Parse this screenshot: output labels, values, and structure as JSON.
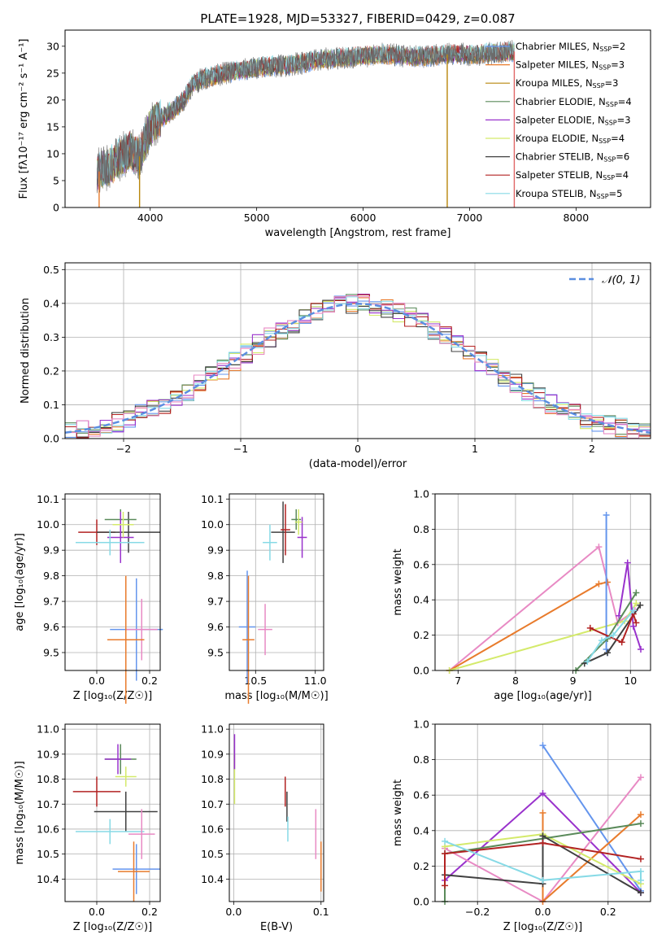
{
  "chart_data": [
    {
      "id": "spectrum",
      "type": "line",
      "title": "PLATE=1928, MJD=53327, FIBERID=0429, z=0.087",
      "xlabel": "wavelength [Angstrom, rest frame]",
      "ylabel": "Flux [fλ10⁻¹⁷ erg cm⁻² s⁻¹ A⁻¹]",
      "xlim": [
        3200,
        8700
      ],
      "ylim": [
        0,
        33
      ],
      "xticks": [
        4000,
        5000,
        6000,
        7000,
        8000
      ],
      "yticks": [
        0,
        5,
        10,
        15,
        20,
        25,
        30
      ],
      "legend_position": "top-right",
      "continuum": {
        "x": [
          3500,
          3600,
          3700,
          3800,
          3900,
          4000,
          4100,
          4200,
          4300,
          4400,
          4500,
          4700,
          5000,
          5300,
          5600,
          5900,
          6200,
          6500,
          6800,
          7100,
          7400
        ],
        "y": [
          6.5,
          7.5,
          9,
          10.5,
          9.5,
          15,
          16.5,
          18,
          19.5,
          23,
          24,
          25,
          26,
          26.5,
          27.5,
          28,
          28.5,
          28,
          28.5,
          28.5,
          29
        ]
      },
      "series": [
        {
          "name": "Chabrier MILES, N",
          "sub": "SSP",
          "count": "=2",
          "color": "#6495ed"
        },
        {
          "name": "Salpeter MILES, N",
          "sub": "SSP",
          "count": "=3",
          "color": "#e87b2c"
        },
        {
          "name": "Kroupa MILES, N",
          "sub": "SSP",
          "count": "=3",
          "color": "#b8860b"
        },
        {
          "name": "Chabrier ELODIE, N",
          "sub": "SSP",
          "count": "=4",
          "color": "#5a8a5a"
        },
        {
          "name": "Salpeter ELODIE, N",
          "sub": "SSP",
          "count": "=3",
          "color": "#9932cc"
        },
        {
          "name": "Kroupa ELODIE, N",
          "sub": "SSP",
          "count": "=4",
          "color": "#d4ea6b"
        },
        {
          "name": "Chabrier STELIB, N",
          "sub": "SSP",
          "count": "=6",
          "color": "#404040"
        },
        {
          "name": "Salpeter STELIB, N",
          "sub": "SSP",
          "count": "=4",
          "color": "#b22222"
        },
        {
          "name": "Kroupa STELIB, N",
          "sub": "SSP",
          "count": "=5",
          "color": "#87dae6"
        }
      ],
      "dips": [
        {
          "x": 3520,
          "color": "#e87b2c"
        },
        {
          "x": 3900,
          "color": "#b8860b"
        },
        {
          "x": 6790,
          "color": "#b8860b"
        },
        {
          "x": 7420,
          "color": "#e06666"
        }
      ]
    },
    {
      "id": "residuals",
      "type": "histogram",
      "xlabel": "(data-model)/error",
      "ylabel": "Normed distribution",
      "xlim": [
        -2.5,
        2.5
      ],
      "ylim": [
        0,
        0.52
      ],
      "xticks": [
        -2,
        -1,
        0,
        1,
        2
      ],
      "yticks": [
        0.0,
        0.1,
        0.2,
        0.3,
        0.4,
        0.5
      ],
      "legend_label": "𝒩(0, 1)",
      "legend_position": "top-right",
      "bin_width": 0.1,
      "colors": [
        "#6495ed",
        "#e87b2c",
        "#d4ea6b",
        "#5a8a5a",
        "#9932cc",
        "#404040",
        "#b22222",
        "#87dae6",
        "#e88ac4"
      ],
      "normal": {
        "mean": 0,
        "sigma": 1,
        "color": "#5b8ee0"
      }
    },
    {
      "id": "age-vs-z",
      "type": "errorbar",
      "xlabel": "Z [log₁₀(Z/Z☉)]",
      "ylabel": "age  [log₁₀(age/yr)]",
      "xlim": [
        -0.12,
        0.24
      ],
      "ylim": [
        9.43,
        10.12
      ],
      "xticks": [
        0.0,
        0.2
      ],
      "yticks": [
        9.5,
        9.6,
        9.7,
        9.8,
        9.9,
        10.0,
        10.1
      ],
      "points": [
        {
          "x": 0.0,
          "y": 9.97,
          "xerr": 0.07,
          "yerr": 0.05,
          "color": "#b22222"
        },
        {
          "x": 0.12,
          "y": 9.97,
          "xerr": 0.12,
          "yerr": 0.08,
          "color": "#404040"
        },
        {
          "x": 0.09,
          "y": 10.02,
          "xerr": 0.06,
          "yerr": 0.04,
          "color": "#5a8a5a"
        },
        {
          "x": 0.09,
          "y": 9.95,
          "xerr": 0.05,
          "yerr": 0.1,
          "color": "#9932cc"
        },
        {
          "x": 0.05,
          "y": 9.93,
          "xerr": 0.13,
          "yerr": 0.05,
          "color": "#87dae6"
        },
        {
          "x": 0.1,
          "y": 10.0,
          "xerr": 0.04,
          "yerr": 0.05,
          "color": "#d4ea6b"
        },
        {
          "x": 0.15,
          "y": 9.59,
          "xerr": 0.1,
          "yerr": 0.2,
          "color": "#6495ed"
        },
        {
          "x": 0.17,
          "y": 9.59,
          "xerr": 0.06,
          "yerr": 0.12,
          "color": "#e88ac4"
        },
        {
          "x": 0.11,
          "y": 9.55,
          "xerr": 0.07,
          "yerr": 0.25,
          "color": "#e87b2c"
        }
      ]
    },
    {
      "id": "age-vs-mass",
      "type": "errorbar",
      "xlabel": "mass [log₁₀(M/M☉)]",
      "ylabel": "",
      "xlim": [
        10.28,
        11.07
      ],
      "ylim": [
        9.43,
        10.12
      ],
      "xticks": [
        10.5,
        11.0
      ],
      "yticks": [
        9.5,
        9.6,
        9.7,
        9.8,
        9.9,
        10.0,
        10.1
      ],
      "points": [
        {
          "x": 10.73,
          "y": 9.97,
          "xerr": 0.1,
          "yerr": 0.12,
          "color": "#404040"
        },
        {
          "x": 10.84,
          "y": 10.02,
          "xerr": 0.04,
          "yerr": 0.04,
          "color": "#5a8a5a"
        },
        {
          "x": 10.89,
          "y": 9.95,
          "xerr": 0.04,
          "yerr": 0.08,
          "color": "#9932cc"
        },
        {
          "x": 10.62,
          "y": 9.93,
          "xerr": 0.06,
          "yerr": 0.07,
          "color": "#87dae6"
        },
        {
          "x": 10.75,
          "y": 9.98,
          "xerr": 0.04,
          "yerr": 0.1,
          "color": "#b22222"
        },
        {
          "x": 10.86,
          "y": 10.01,
          "xerr": 0.03,
          "yerr": 0.05,
          "color": "#d4ea6b"
        },
        {
          "x": 10.43,
          "y": 9.6,
          "xerr": 0.07,
          "yerr": 0.22,
          "color": "#6495ed"
        },
        {
          "x": 10.58,
          "y": 9.59,
          "xerr": 0.06,
          "yerr": 0.1,
          "color": "#e88ac4"
        },
        {
          "x": 10.44,
          "y": 9.55,
          "xerr": 0.05,
          "yerr": 0.25,
          "color": "#e87b2c"
        }
      ]
    },
    {
      "id": "weight-vs-age",
      "type": "line",
      "xlabel": "age  [log₁₀(age/yr)]",
      "ylabel": "mass weight",
      "xlim": [
        6.6,
        10.35
      ],
      "ylim": [
        0,
        1
      ],
      "xticks": [
        7,
        8,
        9,
        10
      ],
      "yticks": [
        0.0,
        0.2,
        0.4,
        0.6,
        0.8,
        1.0
      ],
      "series": [
        {
          "color": "#e88ac4",
          "x": [
            6.85,
            9.45,
            9.78,
            10.08
          ],
          "y": [
            0.0,
            0.7,
            0.27,
            0.34
          ]
        },
        {
          "color": "#e87b2c",
          "x": [
            6.85,
            9.45,
            9.6
          ],
          "y": [
            0.0,
            0.49,
            0.5
          ]
        },
        {
          "color": "#d4ea6b",
          "x": [
            6.85,
            9.9,
            10.1
          ],
          "y": [
            0.0,
            0.28,
            0.38
          ]
        },
        {
          "color": "#6495ed",
          "x": [
            9.58,
            9.58,
            9.6
          ],
          "y": [
            0.88,
            0.12,
            0.1
          ]
        },
        {
          "color": "#9932cc",
          "x": [
            9.8,
            9.95,
            10.05,
            10.18
          ],
          "y": [
            0.31,
            0.61,
            0.25,
            0.12
          ]
        },
        {
          "color": "#5a8a5a",
          "x": [
            9.05,
            9.6,
            10.1
          ],
          "y": [
            0.0,
            0.18,
            0.44
          ]
        },
        {
          "color": "#404040",
          "x": [
            9.2,
            9.6,
            10.17
          ],
          "y": [
            0.04,
            0.1,
            0.37
          ]
        },
        {
          "color": "#b22222",
          "x": [
            9.3,
            9.85,
            10.05,
            10.1
          ],
          "y": [
            0.24,
            0.16,
            0.32,
            0.27
          ]
        },
        {
          "color": "#87dae6",
          "x": [
            9.25,
            9.5,
            9.7,
            10.05
          ],
          "y": [
            0.05,
            0.17,
            0.2,
            0.34
          ]
        }
      ]
    },
    {
      "id": "mass-vs-z",
      "type": "errorbar",
      "xlabel": "Z [log₁₀(Z/Z☉)]",
      "ylabel": "mass [log₁₀(M/M☉)]",
      "xlim": [
        -0.12,
        0.24
      ],
      "ylim": [
        10.31,
        11.02
      ],
      "xticks": [
        0.0,
        0.2
      ],
      "yticks": [
        10.4,
        10.5,
        10.6,
        10.7,
        10.8,
        10.9,
        11.0
      ],
      "points": [
        {
          "x": 0.0,
          "y": 10.75,
          "xerr": 0.09,
          "yerr": 0.06,
          "color": "#b22222"
        },
        {
          "x": 0.11,
          "y": 10.67,
          "xerr": 0.12,
          "yerr": 0.08,
          "color": "#404040"
        },
        {
          "x": 0.09,
          "y": 10.88,
          "xerr": 0.06,
          "yerr": 0.06,
          "color": "#5a8a5a"
        },
        {
          "x": 0.08,
          "y": 10.88,
          "xerr": 0.05,
          "yerr": 0.06,
          "color": "#9932cc"
        },
        {
          "x": 0.05,
          "y": 10.59,
          "xerr": 0.13,
          "yerr": 0.05,
          "color": "#87dae6"
        },
        {
          "x": 0.11,
          "y": 10.81,
          "xerr": 0.04,
          "yerr": 0.04,
          "color": "#d4ea6b"
        },
        {
          "x": 0.15,
          "y": 10.44,
          "xerr": 0.09,
          "yerr": 0.1,
          "color": "#6495ed"
        },
        {
          "x": 0.17,
          "y": 10.58,
          "xerr": 0.05,
          "yerr": 0.1,
          "color": "#e88ac4"
        },
        {
          "x": 0.14,
          "y": 10.43,
          "xerr": 0.06,
          "yerr": 0.12,
          "color": "#e87b2c"
        }
      ]
    },
    {
      "id": "mass-vs-ebv",
      "type": "errorbar",
      "xlabel": "E(B-V)",
      "ylabel": "",
      "xlim": [
        -0.005,
        0.103
      ],
      "ylim": [
        10.31,
        11.02
      ],
      "xticks": [
        0.0,
        0.1
      ],
      "yticks": [
        10.4,
        10.5,
        10.6,
        10.7,
        10.8,
        10.9,
        11.0
      ],
      "points": [
        {
          "x": 0.001,
          "y": 10.8,
          "xerr": 0.0,
          "yerr": 0.1,
          "color": "#d4ea6b"
        },
        {
          "x": 0.001,
          "y": 10.91,
          "xerr": 0.0,
          "yerr": 0.07,
          "color": "#9932cc"
        },
        {
          "x": 0.059,
          "y": 10.75,
          "xerr": 0.0,
          "yerr": 0.06,
          "color": "#b22222"
        },
        {
          "x": 0.061,
          "y": 10.69,
          "xerr": 0.0,
          "yerr": 0.06,
          "color": "#404040"
        },
        {
          "x": 0.062,
          "y": 10.6,
          "xerr": 0.0,
          "yerr": 0.05,
          "color": "#87dae6"
        },
        {
          "x": 0.094,
          "y": 10.58,
          "xerr": 0.0,
          "yerr": 0.1,
          "color": "#e88ac4"
        },
        {
          "x": 0.1,
          "y": 10.45,
          "xerr": 0.0,
          "yerr": 0.1,
          "color": "#e87b2c"
        }
      ]
    },
    {
      "id": "weight-vs-z",
      "type": "line",
      "xlabel": "Z [log₁₀(Z/Z☉)]",
      "ylabel": "mass weight",
      "xlim": [
        -0.33,
        0.33
      ],
      "ylim": [
        0,
        1
      ],
      "xticks": [
        -0.2,
        0.0,
        0.2
      ],
      "yticks": [
        0.0,
        0.2,
        0.4,
        0.6,
        0.8,
        1.0
      ],
      "series": [
        {
          "color": "#6495ed",
          "x": [
            0.0,
            0.3
          ],
          "y": [
            0.88,
            0.06
          ]
        },
        {
          "color": "#9932cc",
          "x": [
            -0.3,
            0.0,
            0.3
          ],
          "y": [
            0.12,
            0.61,
            0.05
          ]
        },
        {
          "color": "#e88ac4",
          "x": [
            -0.3,
            0.0,
            0.3
          ],
          "y": [
            0.3,
            0.0,
            0.7
          ]
        },
        {
          "color": "#e87b2c",
          "x": [
            0.0,
            0.0,
            0.3
          ],
          "y": [
            0.5,
            0.0,
            0.49
          ]
        },
        {
          "color": "#d4ea6b",
          "x": [
            -0.3,
            0.0,
            0.3
          ],
          "y": [
            0.31,
            0.38,
            0.1
          ]
        },
        {
          "color": "#5a8a5a",
          "x": [
            -0.3,
            -0.3,
            0.3
          ],
          "y": [
            0.0,
            0.27,
            0.44
          ]
        },
        {
          "color": "#404040",
          "x": [
            -0.3,
            0.0,
            0.0,
            0.3
          ],
          "y": [
            0.15,
            0.1,
            0.37,
            0.05
          ]
        },
        {
          "color": "#b22222",
          "x": [
            -0.3,
            -0.3,
            0.0,
            0.3
          ],
          "y": [
            0.09,
            0.27,
            0.33,
            0.24
          ]
        },
        {
          "color": "#87dae6",
          "x": [
            -0.3,
            0.0,
            0.3,
            0.3
          ],
          "y": [
            0.34,
            0.12,
            0.17,
            0.12
          ]
        }
      ]
    }
  ]
}
